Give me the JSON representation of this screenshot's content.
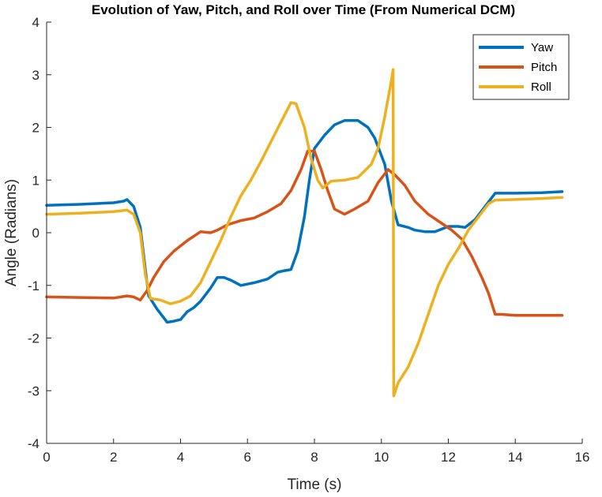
{
  "chart_data": {
    "type": "line",
    "title": "Evolution of Yaw, Pitch, and Roll over Time (From Numerical DCM)",
    "xlabel": "Time (s)",
    "ylabel": "Angle (Radians)",
    "xlim": [
      0,
      16
    ],
    "ylim": [
      -4,
      4
    ],
    "xticks": [
      0,
      2,
      4,
      6,
      8,
      10,
      12,
      14,
      16
    ],
    "yticks": [
      -4,
      -3,
      -2,
      -1,
      0,
      1,
      2,
      3,
      4
    ],
    "grid": false,
    "legend_position": "top-right",
    "series": [
      {
        "name": "Yaw",
        "color": "#0072BD",
        "points": [
          [
            0,
            0.52
          ],
          [
            1,
            0.54
          ],
          [
            2,
            0.57
          ],
          [
            2.3,
            0.6
          ],
          [
            2.4,
            0.63
          ],
          [
            2.6,
            0.5
          ],
          [
            2.8,
            0.1
          ],
          [
            2.95,
            -0.7
          ],
          [
            3.05,
            -1.2
          ],
          [
            3.3,
            -1.45
          ],
          [
            3.6,
            -1.7
          ],
          [
            3.8,
            -1.68
          ],
          [
            4.0,
            -1.65
          ],
          [
            4.2,
            -1.5
          ],
          [
            4.4,
            -1.42
          ],
          [
            4.6,
            -1.3
          ],
          [
            4.9,
            -1.05
          ],
          [
            5.1,
            -0.85
          ],
          [
            5.3,
            -0.85
          ],
          [
            5.5,
            -0.9
          ],
          [
            5.8,
            -1.0
          ],
          [
            6.2,
            -0.95
          ],
          [
            6.6,
            -0.88
          ],
          [
            6.9,
            -0.75
          ],
          [
            7.1,
            -0.72
          ],
          [
            7.3,
            -0.7
          ],
          [
            7.5,
            -0.35
          ],
          [
            7.7,
            0.3
          ],
          [
            7.85,
            1.0
          ],
          [
            8.0,
            1.6
          ],
          [
            8.3,
            1.85
          ],
          [
            8.6,
            2.05
          ],
          [
            8.9,
            2.13
          ],
          [
            9.3,
            2.13
          ],
          [
            9.6,
            2.0
          ],
          [
            9.8,
            1.8
          ],
          [
            10.1,
            1.3
          ],
          [
            10.3,
            0.6
          ],
          [
            10.5,
            0.15
          ],
          [
            10.8,
            0.1
          ],
          [
            11.0,
            0.05
          ],
          [
            11.3,
            0.02
          ],
          [
            11.6,
            0.02
          ],
          [
            12.0,
            0.12
          ],
          [
            12.3,
            0.12
          ],
          [
            12.5,
            0.1
          ],
          [
            12.8,
            0.25
          ],
          [
            13.1,
            0.5
          ],
          [
            13.4,
            0.75
          ],
          [
            14.0,
            0.75
          ],
          [
            14.8,
            0.76
          ],
          [
            15.4,
            0.78
          ]
        ]
      },
      {
        "name": "Pitch",
        "color": "#D95319",
        "points": [
          [
            0,
            -1.22
          ],
          [
            1,
            -1.23
          ],
          [
            2,
            -1.24
          ],
          [
            2.4,
            -1.2
          ],
          [
            2.6,
            -1.22
          ],
          [
            2.8,
            -1.28
          ],
          [
            3.0,
            -1.1
          ],
          [
            3.2,
            -0.85
          ],
          [
            3.5,
            -0.55
          ],
          [
            3.8,
            -0.35
          ],
          [
            4.2,
            -0.15
          ],
          [
            4.6,
            0.02
          ],
          [
            4.9,
            0.0
          ],
          [
            5.1,
            0.05
          ],
          [
            5.4,
            0.15
          ],
          [
            5.8,
            0.23
          ],
          [
            6.2,
            0.28
          ],
          [
            6.6,
            0.4
          ],
          [
            7.0,
            0.55
          ],
          [
            7.3,
            0.8
          ],
          [
            7.6,
            1.2
          ],
          [
            7.8,
            1.55
          ],
          [
            8.0,
            1.55
          ],
          [
            8.2,
            1.2
          ],
          [
            8.4,
            0.8
          ],
          [
            8.6,
            0.45
          ],
          [
            8.9,
            0.35
          ],
          [
            9.2,
            0.45
          ],
          [
            9.6,
            0.6
          ],
          [
            9.9,
            0.95
          ],
          [
            10.2,
            1.2
          ],
          [
            10.4,
            1.1
          ],
          [
            10.7,
            0.9
          ],
          [
            11.0,
            0.6
          ],
          [
            11.4,
            0.35
          ],
          [
            11.8,
            0.18
          ],
          [
            12.1,
            0.05
          ],
          [
            12.4,
            -0.12
          ],
          [
            12.7,
            -0.45
          ],
          [
            13.0,
            -0.85
          ],
          [
            13.2,
            -1.15
          ],
          [
            13.4,
            -1.55
          ],
          [
            13.6,
            -1.55
          ],
          [
            14.0,
            -1.57
          ],
          [
            14.8,
            -1.57
          ],
          [
            15.4,
            -1.57
          ]
        ]
      },
      {
        "name": "Roll",
        "color": "#EDB120",
        "points": [
          [
            0,
            0.35
          ],
          [
            1,
            0.37
          ],
          [
            2,
            0.4
          ],
          [
            2.4,
            0.43
          ],
          [
            2.6,
            0.35
          ],
          [
            2.8,
            0.0
          ],
          [
            2.95,
            -0.8
          ],
          [
            3.1,
            -1.25
          ],
          [
            3.4,
            -1.28
          ],
          [
            3.7,
            -1.35
          ],
          [
            4.0,
            -1.3
          ],
          [
            4.3,
            -1.2
          ],
          [
            4.6,
            -0.95
          ],
          [
            4.9,
            -0.55
          ],
          [
            5.2,
            -0.15
          ],
          [
            5.5,
            0.3
          ],
          [
            5.8,
            0.7
          ],
          [
            6.1,
            1.0
          ],
          [
            6.4,
            1.35
          ],
          [
            6.8,
            1.85
          ],
          [
            7.0,
            2.1
          ],
          [
            7.3,
            2.47
          ],
          [
            7.45,
            2.45
          ],
          [
            7.7,
            2.0
          ],
          [
            7.9,
            1.4
          ],
          [
            8.1,
            1.0
          ],
          [
            8.25,
            0.85
          ],
          [
            8.5,
            0.98
          ],
          [
            8.9,
            1.0
          ],
          [
            9.3,
            1.05
          ],
          [
            9.7,
            1.3
          ],
          [
            9.9,
            1.6
          ],
          [
            10.1,
            2.2
          ],
          [
            10.3,
            2.9
          ],
          [
            10.35,
            3.1
          ],
          [
            10.37,
            -3.1
          ],
          [
            10.5,
            -2.85
          ],
          [
            10.8,
            -2.55
          ],
          [
            11.1,
            -2.1
          ],
          [
            11.4,
            -1.55
          ],
          [
            11.7,
            -1.0
          ],
          [
            12.0,
            -0.6
          ],
          [
            12.3,
            -0.3
          ],
          [
            12.6,
            0.05
          ],
          [
            12.9,
            0.3
          ],
          [
            13.2,
            0.55
          ],
          [
            13.4,
            0.62
          ],
          [
            14.0,
            0.63
          ],
          [
            14.8,
            0.65
          ],
          [
            15.4,
            0.67
          ]
        ]
      }
    ]
  }
}
